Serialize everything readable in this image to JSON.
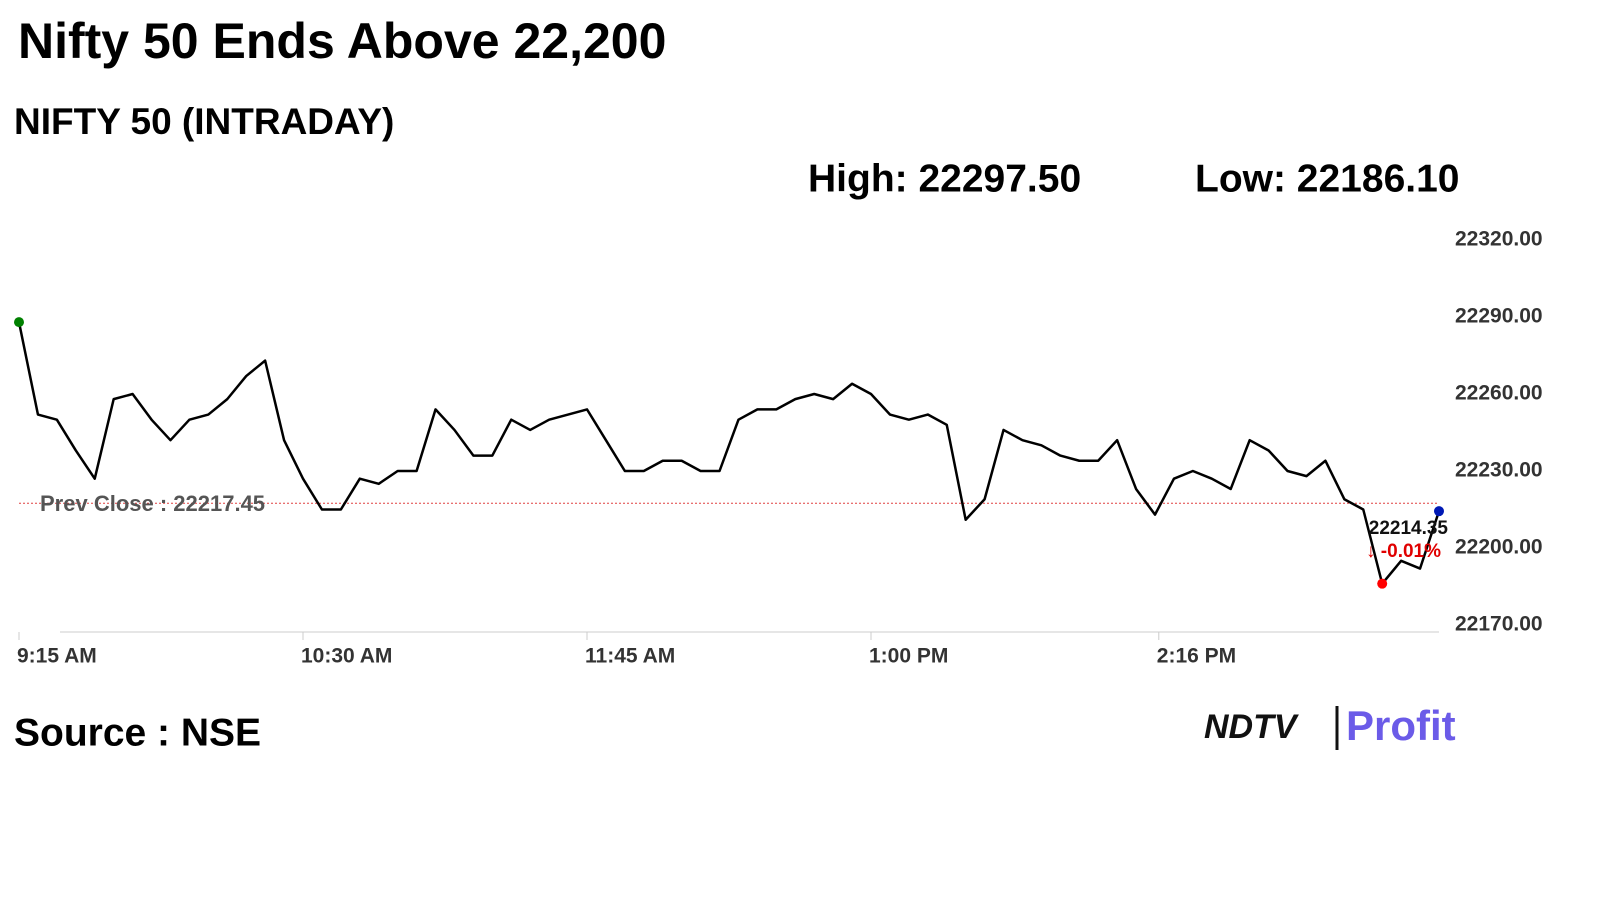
{
  "chart_data": {
    "type": "line",
    "title": "Nifty 50 Ends Above 22,200",
    "subtitle": "NIFTY 50 (INTRADAY)",
    "high": {
      "value": 22297.5,
      "label": "High: 22297.50"
    },
    "low": {
      "value": 22186.1,
      "label": "Low: 22186.10"
    },
    "prev_close": {
      "value": 22217.45,
      "label": "Prev Close : 22217.45"
    },
    "change_label": "↓ -0.01%",
    "source": "Source : NSE",
    "logo": [
      "NDTV",
      "Profit"
    ],
    "color": "#000000",
    "x": [
      "09:15",
      "09:20",
      "09:25",
      "09:30",
      "09:35",
      "09:40",
      "09:45",
      "09:50",
      "09:55",
      "10:00",
      "10:05",
      "10:10",
      "10:15",
      "10:20",
      "10:25",
      "10:30",
      "10:35",
      "10:40",
      "10:45",
      "10:50",
      "10:55",
      "11:00",
      "11:05",
      "11:10",
      "11:15",
      "11:20",
      "11:25",
      "11:30",
      "11:35",
      "11:40",
      "11:45",
      "11:50",
      "11:55",
      "12:00",
      "12:05",
      "12:10",
      "12:15",
      "12:20",
      "12:25",
      "12:30",
      "12:35",
      "12:40",
      "12:45",
      "12:50",
      "12:55",
      "13:00",
      "13:05",
      "13:10",
      "13:15",
      "13:20",
      "13:25",
      "13:30",
      "13:35",
      "13:40",
      "13:45",
      "13:50",
      "13:55",
      "14:00",
      "14:05",
      "14:10",
      "14:15",
      "14:20",
      "14:25",
      "14:30",
      "14:35",
      "14:40",
      "14:45",
      "14:50",
      "14:55",
      "15:00",
      "15:05",
      "15:10",
      "15:15",
      "15:20",
      "15:25",
      "15:30"
    ],
    "values": [
      22288,
      22252,
      22250,
      22238,
      22227,
      22258,
      22260,
      22250,
      22242,
      22250,
      22252,
      22258,
      22267,
      22273,
      22242,
      22227,
      22215,
      22215,
      22227,
      22225,
      22230,
      22230,
      22254,
      22246,
      22236,
      22236,
      22250,
      22246,
      22250,
      22252,
      22254,
      22242,
      22230,
      22230,
      22234,
      22234,
      22230,
      22230,
      22250,
      22254,
      22254,
      22258,
      22260,
      22258,
      22264,
      22260,
      22252,
      22250,
      22252,
      22248,
      22211,
      22219,
      22246,
      22242,
      22240,
      22236,
      22234,
      22234,
      22242,
      22223,
      22213,
      22227,
      22230,
      22227,
      22223,
      22242,
      22238,
      22230,
      22228,
      22234,
      22219,
      22215,
      22186.1,
      22195,
      22192,
      22214.35
    ],
    "xlim": [
      "09:15",
      "15:30"
    ],
    "xticks": [
      {
        "value": "09:15",
        "label": "9:15 AM"
      },
      {
        "value": "10:30",
        "label": "10:30 AM"
      },
      {
        "value": "11:45",
        "label": "11:45 AM"
      },
      {
        "value": "13:00",
        "label": "1:00 PM"
      },
      {
        "value": "14:16",
        "label": "2:16 PM"
      }
    ],
    "ylim": [
      22170,
      22320
    ],
    "yticks": [
      {
        "value": 22170,
        "label": "22170.00"
      },
      {
        "value": 22200,
        "label": "22200.00"
      },
      {
        "value": 22230,
        "label": "22230.00"
      },
      {
        "value": 22260,
        "label": "22260.00"
      },
      {
        "value": 22290,
        "label": "22290.00"
      },
      {
        "value": 22320,
        "label": "22320.00"
      }
    ]
  }
}
